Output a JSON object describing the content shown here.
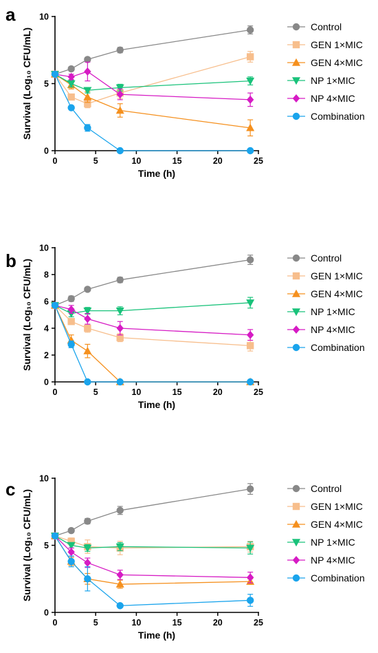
{
  "legend": [
    {
      "name": "Control",
      "color": "#888888",
      "marker": "circle"
    },
    {
      "name": "GEN 1×MIC",
      "color": "#F7BE8C",
      "marker": "square"
    },
    {
      "name": "GEN 4×MIC",
      "color": "#F5901E",
      "marker": "triangle-up"
    },
    {
      "name": "NP 1×MIC",
      "color": "#19C27A",
      "marker": "triangle-down"
    },
    {
      "name": "NP 4×MIC",
      "color": "#D61BC4",
      "marker": "diamond"
    },
    {
      "name": "Combination",
      "color": "#1AA4EC",
      "marker": "circle"
    }
  ],
  "chart_data": [
    {
      "panel": "a",
      "type": "line",
      "xlabel": "Time (h)",
      "ylabel": "Survival (Log₁₀ CFU/mL)",
      "xlim": [
        0,
        25
      ],
      "ylim": [
        0,
        10
      ],
      "xticks": [
        0,
        5,
        10,
        15,
        20,
        25
      ],
      "yticks": [
        0,
        5,
        10
      ],
      "x": [
        0,
        2,
        4,
        8,
        24
      ],
      "series": [
        {
          "name": "Control",
          "values": [
            5.7,
            6.1,
            6.8,
            7.5,
            9.0
          ],
          "err": [
            0,
            0.15,
            0.15,
            0.2,
            0.3
          ]
        },
        {
          "name": "GEN 1×MIC",
          "values": [
            5.7,
            4.0,
            3.5,
            4.3,
            7.0
          ],
          "err": [
            0,
            0.15,
            0.3,
            0.4,
            0.4
          ]
        },
        {
          "name": "GEN 4×MIC",
          "values": [
            5.7,
            4.9,
            4.0,
            3.0,
            1.7
          ],
          "err": [
            0,
            0.3,
            0.4,
            0.5,
            0.6
          ]
        },
        {
          "name": "NP 1×MIC",
          "values": [
            5.7,
            5.0,
            4.5,
            4.7,
            5.2
          ],
          "err": [
            0,
            0.25,
            0.2,
            0.25,
            0.3
          ]
        },
        {
          "name": "NP 4×MIC",
          "values": [
            5.7,
            5.5,
            5.9,
            4.2,
            3.8
          ],
          "err": [
            0,
            0.2,
            0.7,
            0.4,
            0.5
          ]
        },
        {
          "name": "Combination",
          "values": [
            5.7,
            3.2,
            1.7,
            0,
            0
          ],
          "err": [
            0,
            0.1,
            0.25,
            0,
            0
          ]
        }
      ]
    },
    {
      "panel": "b",
      "type": "line",
      "xlabel": "Time (h)",
      "ylabel": "Survival (Log₁₀ CFU/mL)",
      "xlim": [
        0,
        25
      ],
      "ylim": [
        0,
        10
      ],
      "xticks": [
        0,
        5,
        10,
        15,
        20,
        25
      ],
      "yticks": [
        0,
        2,
        4,
        6,
        8,
        10
      ],
      "x": [
        0,
        2,
        4,
        8,
        24
      ],
      "series": [
        {
          "name": "Control",
          "values": [
            5.7,
            6.2,
            6.9,
            7.6,
            9.1
          ],
          "err": [
            0,
            0.2,
            0.15,
            0.2,
            0.35
          ]
        },
        {
          "name": "GEN 1×MIC",
          "values": [
            5.7,
            4.5,
            4.0,
            3.3,
            2.7
          ],
          "err": [
            0,
            0.2,
            0.3,
            0.3,
            0.4
          ]
        },
        {
          "name": "GEN 4×MIC",
          "values": [
            5.7,
            3.1,
            2.3,
            0,
            0
          ],
          "err": [
            0,
            0.4,
            0.5,
            0,
            0
          ]
        },
        {
          "name": "NP 1×MIC",
          "values": [
            5.7,
            5.1,
            5.3,
            5.3,
            5.9
          ],
          "err": [
            0,
            0.25,
            0.25,
            0.3,
            0.4
          ]
        },
        {
          "name": "NP 4×MIC",
          "values": [
            5.7,
            5.4,
            4.7,
            4.0,
            3.5
          ],
          "err": [
            0,
            0.3,
            0.4,
            0.5,
            0.4
          ]
        },
        {
          "name": "Combination",
          "values": [
            5.7,
            2.8,
            0,
            0,
            0
          ],
          "err": [
            0,
            0.25,
            0,
            0,
            0
          ]
        }
      ]
    },
    {
      "panel": "c",
      "type": "line",
      "xlabel": "Time (h)",
      "ylabel": "Survival (Log₁₀ CFU/mL)",
      "xlim": [
        0,
        25
      ],
      "ylim": [
        0,
        10
      ],
      "xticks": [
        0,
        5,
        10,
        15,
        20,
        25
      ],
      "yticks": [
        0,
        5,
        10
      ],
      "x": [
        0,
        2,
        4,
        8,
        24
      ],
      "series": [
        {
          "name": "Control",
          "values": [
            5.7,
            6.1,
            6.8,
            7.6,
            9.2
          ],
          "err": [
            0,
            0.15,
            0.2,
            0.3,
            0.4
          ]
        },
        {
          "name": "GEN 1×MIC",
          "values": [
            5.7,
            5.3,
            4.9,
            4.8,
            4.9
          ],
          "err": [
            0,
            0.25,
            0.5,
            0.5,
            0.4
          ]
        },
        {
          "name": "GEN 4×MIC",
          "values": [
            5.7,
            3.8,
            2.5,
            2.1,
            2.3
          ],
          "err": [
            0,
            0.3,
            0.4,
            0.3,
            0.2
          ]
        },
        {
          "name": "NP 1×MIC",
          "values": [
            5.7,
            5.0,
            4.8,
            4.9,
            4.8
          ],
          "err": [
            0,
            0.2,
            0.25,
            0.3,
            0.45
          ]
        },
        {
          "name": "NP 4×MIC",
          "values": [
            5.7,
            4.5,
            3.7,
            2.8,
            2.6
          ],
          "err": [
            0,
            0.3,
            0.35,
            0.35,
            0.4
          ]
        },
        {
          "name": "Combination",
          "values": [
            5.7,
            3.8,
            2.5,
            0.5,
            0.9
          ],
          "err": [
            0,
            0.4,
            0.9,
            0.1,
            0.45
          ]
        }
      ]
    }
  ]
}
